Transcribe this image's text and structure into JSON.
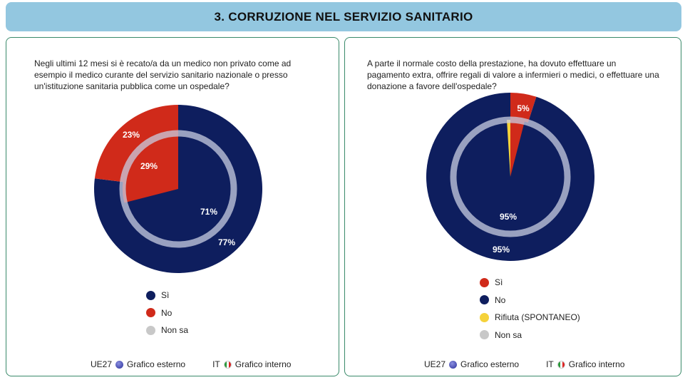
{
  "title": "3. CORRUZIONE NEL SERVIZIO SANITARIO",
  "colors": {
    "si": "#0e1e5e",
    "no": "#d02a1a",
    "rifiuta": "#f5d23a",
    "non_sa": "#c8c8c8",
    "ring": "#9aa0bc"
  },
  "chart_data": [
    {
      "type": "pie",
      "title": "Negli ultimi 12 mesi si è recato/a da un medico non privato come ad esempio il medico curante del servizio sanitario nazionale o presso un'istituzione sanitaria pubblica come un ospedale?",
      "categories": [
        "Sì",
        "No",
        "Non sa"
      ],
      "series": [
        {
          "name": "UE27 Grafico esterno",
          "values": [
            77,
            23,
            0
          ]
        },
        {
          "name": "IT Grafico interno",
          "values": [
            71,
            29,
            0
          ]
        }
      ],
      "labels": {
        "outer_si": "77%",
        "outer_no": "23%",
        "inner_si": "71%",
        "inner_no": "29%"
      }
    },
    {
      "type": "pie",
      "title": "A parte il normale costo della prestazione, ha dovuto effettuare un pagamento extra, offrire regali di valore a infermieri o medici, o effettuare una donazione a favore dell'ospedale?",
      "categories": [
        "Sì",
        "No",
        "Rifiuta (SPONTANEO)",
        "Non sa"
      ],
      "series": [
        {
          "name": "UE27 Grafico esterno",
          "values": [
            5,
            95,
            0,
            0
          ]
        },
        {
          "name": "IT Grafico interno",
          "values": [
            4,
            95,
            1,
            0
          ]
        }
      ],
      "labels": {
        "outer_si": "5%",
        "outer_no": "95%",
        "inner_no": "95%"
      }
    }
  ],
  "footer": {
    "eu": "UE27",
    "eu_text": "Grafico esterno",
    "it": "IT",
    "it_text": "Grafico interno"
  }
}
